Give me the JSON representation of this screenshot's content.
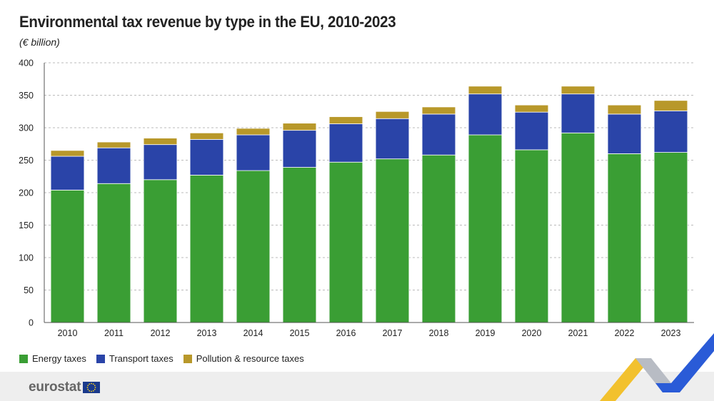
{
  "header": {
    "title": "Environmental tax revenue by type in the EU, 2010-2023",
    "subtitle": "(€ billion)"
  },
  "colors": {
    "energy": "#3a9e34",
    "transport": "#2a44a8",
    "pollution": "#b8982a",
    "grid": "#bbbbbb",
    "axis": "#555555",
    "text": "#222222"
  },
  "chart_data": {
    "type": "bar",
    "stacked": true,
    "title": "Environmental tax revenue by type in the EU, 2010-2023",
    "subtitle": "(€ billion)",
    "xlabel": "",
    "ylabel": "",
    "ylim": [
      0,
      400
    ],
    "yticks": [
      0,
      50,
      100,
      150,
      200,
      250,
      300,
      350,
      400
    ],
    "grid": true,
    "legend_position": "bottom-left",
    "categories": [
      "2010",
      "2011",
      "2012",
      "2013",
      "2014",
      "2015",
      "2016",
      "2017",
      "2018",
      "2019",
      "2020",
      "2021",
      "2022",
      "2023"
    ],
    "series": [
      {
        "name": "Energy taxes",
        "color": "#3a9e34",
        "values": [
          204,
          214,
          220,
          227,
          234,
          239,
          247,
          252,
          258,
          289,
          266,
          292,
          260,
          262
        ]
      },
      {
        "name": "Transport taxes",
        "color": "#2a44a8",
        "values": [
          52,
          55,
          54,
          55,
          55,
          57,
          59,
          62,
          63,
          63,
          58,
          60,
          61,
          64
        ]
      },
      {
        "name": "Pollution & resource taxes",
        "color": "#b8982a",
        "values": [
          9,
          9,
          10,
          10,
          10,
          11,
          11,
          11,
          11,
          12,
          11,
          12,
          14,
          16
        ]
      }
    ]
  },
  "brand": {
    "logo_text": "eurostat"
  }
}
